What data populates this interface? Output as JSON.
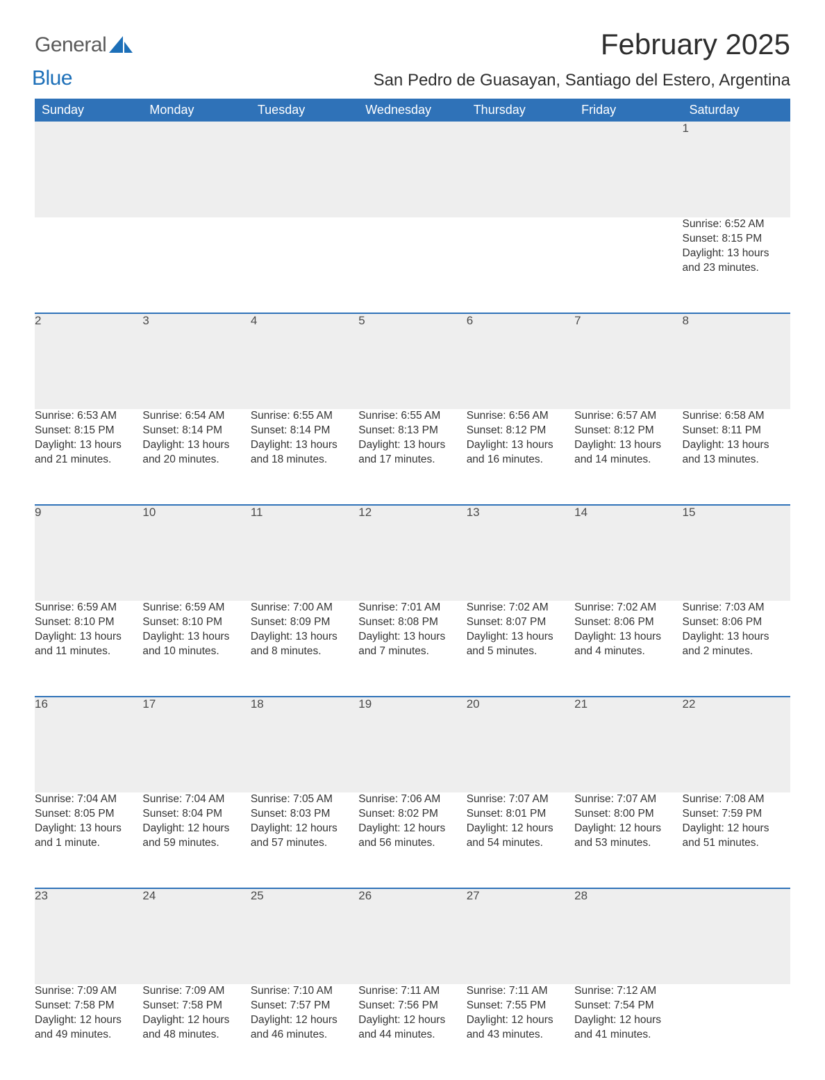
{
  "logo": {
    "text1": "General",
    "text2": "Blue",
    "shape_color": "#1c6fb8"
  },
  "title": "February 2025",
  "location": "San Pedro de Guasayan, Santiago del Estero, Argentina",
  "colors": {
    "header_bg": "#2f72b8",
    "header_text": "#ffffff",
    "daynum_bg": "#eeeeee",
    "row_divider": "#2f72b8",
    "body_text": "#333333",
    "background": "#ffffff"
  },
  "columns": [
    "Sunday",
    "Monday",
    "Tuesday",
    "Wednesday",
    "Thursday",
    "Friday",
    "Saturday"
  ],
  "weeks": [
    [
      null,
      null,
      null,
      null,
      null,
      null,
      {
        "day": "1",
        "sunrise": "Sunrise: 6:52 AM",
        "sunset": "Sunset: 8:15 PM",
        "daylight1": "Daylight: 13 hours",
        "daylight2": "and 23 minutes."
      }
    ],
    [
      {
        "day": "2",
        "sunrise": "Sunrise: 6:53 AM",
        "sunset": "Sunset: 8:15 PM",
        "daylight1": "Daylight: 13 hours",
        "daylight2": "and 21 minutes."
      },
      {
        "day": "3",
        "sunrise": "Sunrise: 6:54 AM",
        "sunset": "Sunset: 8:14 PM",
        "daylight1": "Daylight: 13 hours",
        "daylight2": "and 20 minutes."
      },
      {
        "day": "4",
        "sunrise": "Sunrise: 6:55 AM",
        "sunset": "Sunset: 8:14 PM",
        "daylight1": "Daylight: 13 hours",
        "daylight2": "and 18 minutes."
      },
      {
        "day": "5",
        "sunrise": "Sunrise: 6:55 AM",
        "sunset": "Sunset: 8:13 PM",
        "daylight1": "Daylight: 13 hours",
        "daylight2": "and 17 minutes."
      },
      {
        "day": "6",
        "sunrise": "Sunrise: 6:56 AM",
        "sunset": "Sunset: 8:12 PM",
        "daylight1": "Daylight: 13 hours",
        "daylight2": "and 16 minutes."
      },
      {
        "day": "7",
        "sunrise": "Sunrise: 6:57 AM",
        "sunset": "Sunset: 8:12 PM",
        "daylight1": "Daylight: 13 hours",
        "daylight2": "and 14 minutes."
      },
      {
        "day": "8",
        "sunrise": "Sunrise: 6:58 AM",
        "sunset": "Sunset: 8:11 PM",
        "daylight1": "Daylight: 13 hours",
        "daylight2": "and 13 minutes."
      }
    ],
    [
      {
        "day": "9",
        "sunrise": "Sunrise: 6:59 AM",
        "sunset": "Sunset: 8:10 PM",
        "daylight1": "Daylight: 13 hours",
        "daylight2": "and 11 minutes."
      },
      {
        "day": "10",
        "sunrise": "Sunrise: 6:59 AM",
        "sunset": "Sunset: 8:10 PM",
        "daylight1": "Daylight: 13 hours",
        "daylight2": "and 10 minutes."
      },
      {
        "day": "11",
        "sunrise": "Sunrise: 7:00 AM",
        "sunset": "Sunset: 8:09 PM",
        "daylight1": "Daylight: 13 hours",
        "daylight2": "and 8 minutes."
      },
      {
        "day": "12",
        "sunrise": "Sunrise: 7:01 AM",
        "sunset": "Sunset: 8:08 PM",
        "daylight1": "Daylight: 13 hours",
        "daylight2": "and 7 minutes."
      },
      {
        "day": "13",
        "sunrise": "Sunrise: 7:02 AM",
        "sunset": "Sunset: 8:07 PM",
        "daylight1": "Daylight: 13 hours",
        "daylight2": "and 5 minutes."
      },
      {
        "day": "14",
        "sunrise": "Sunrise: 7:02 AM",
        "sunset": "Sunset: 8:06 PM",
        "daylight1": "Daylight: 13 hours",
        "daylight2": "and 4 minutes."
      },
      {
        "day": "15",
        "sunrise": "Sunrise: 7:03 AM",
        "sunset": "Sunset: 8:06 PM",
        "daylight1": "Daylight: 13 hours",
        "daylight2": "and 2 minutes."
      }
    ],
    [
      {
        "day": "16",
        "sunrise": "Sunrise: 7:04 AM",
        "sunset": "Sunset: 8:05 PM",
        "daylight1": "Daylight: 13 hours",
        "daylight2": "and 1 minute."
      },
      {
        "day": "17",
        "sunrise": "Sunrise: 7:04 AM",
        "sunset": "Sunset: 8:04 PM",
        "daylight1": "Daylight: 12 hours",
        "daylight2": "and 59 minutes."
      },
      {
        "day": "18",
        "sunrise": "Sunrise: 7:05 AM",
        "sunset": "Sunset: 8:03 PM",
        "daylight1": "Daylight: 12 hours",
        "daylight2": "and 57 minutes."
      },
      {
        "day": "19",
        "sunrise": "Sunrise: 7:06 AM",
        "sunset": "Sunset: 8:02 PM",
        "daylight1": "Daylight: 12 hours",
        "daylight2": "and 56 minutes."
      },
      {
        "day": "20",
        "sunrise": "Sunrise: 7:07 AM",
        "sunset": "Sunset: 8:01 PM",
        "daylight1": "Daylight: 12 hours",
        "daylight2": "and 54 minutes."
      },
      {
        "day": "21",
        "sunrise": "Sunrise: 7:07 AM",
        "sunset": "Sunset: 8:00 PM",
        "daylight1": "Daylight: 12 hours",
        "daylight2": "and 53 minutes."
      },
      {
        "day": "22",
        "sunrise": "Sunrise: 7:08 AM",
        "sunset": "Sunset: 7:59 PM",
        "daylight1": "Daylight: 12 hours",
        "daylight2": "and 51 minutes."
      }
    ],
    [
      {
        "day": "23",
        "sunrise": "Sunrise: 7:09 AM",
        "sunset": "Sunset: 7:58 PM",
        "daylight1": "Daylight: 12 hours",
        "daylight2": "and 49 minutes."
      },
      {
        "day": "24",
        "sunrise": "Sunrise: 7:09 AM",
        "sunset": "Sunset: 7:58 PM",
        "daylight1": "Daylight: 12 hours",
        "daylight2": "and 48 minutes."
      },
      {
        "day": "25",
        "sunrise": "Sunrise: 7:10 AM",
        "sunset": "Sunset: 7:57 PM",
        "daylight1": "Daylight: 12 hours",
        "daylight2": "and 46 minutes."
      },
      {
        "day": "26",
        "sunrise": "Sunrise: 7:11 AM",
        "sunset": "Sunset: 7:56 PM",
        "daylight1": "Daylight: 12 hours",
        "daylight2": "and 44 minutes."
      },
      {
        "day": "27",
        "sunrise": "Sunrise: 7:11 AM",
        "sunset": "Sunset: 7:55 PM",
        "daylight1": "Daylight: 12 hours",
        "daylight2": "and 43 minutes."
      },
      {
        "day": "28",
        "sunrise": "Sunrise: 7:12 AM",
        "sunset": "Sunset: 7:54 PM",
        "daylight1": "Daylight: 12 hours",
        "daylight2": "and 41 minutes."
      },
      null
    ]
  ]
}
